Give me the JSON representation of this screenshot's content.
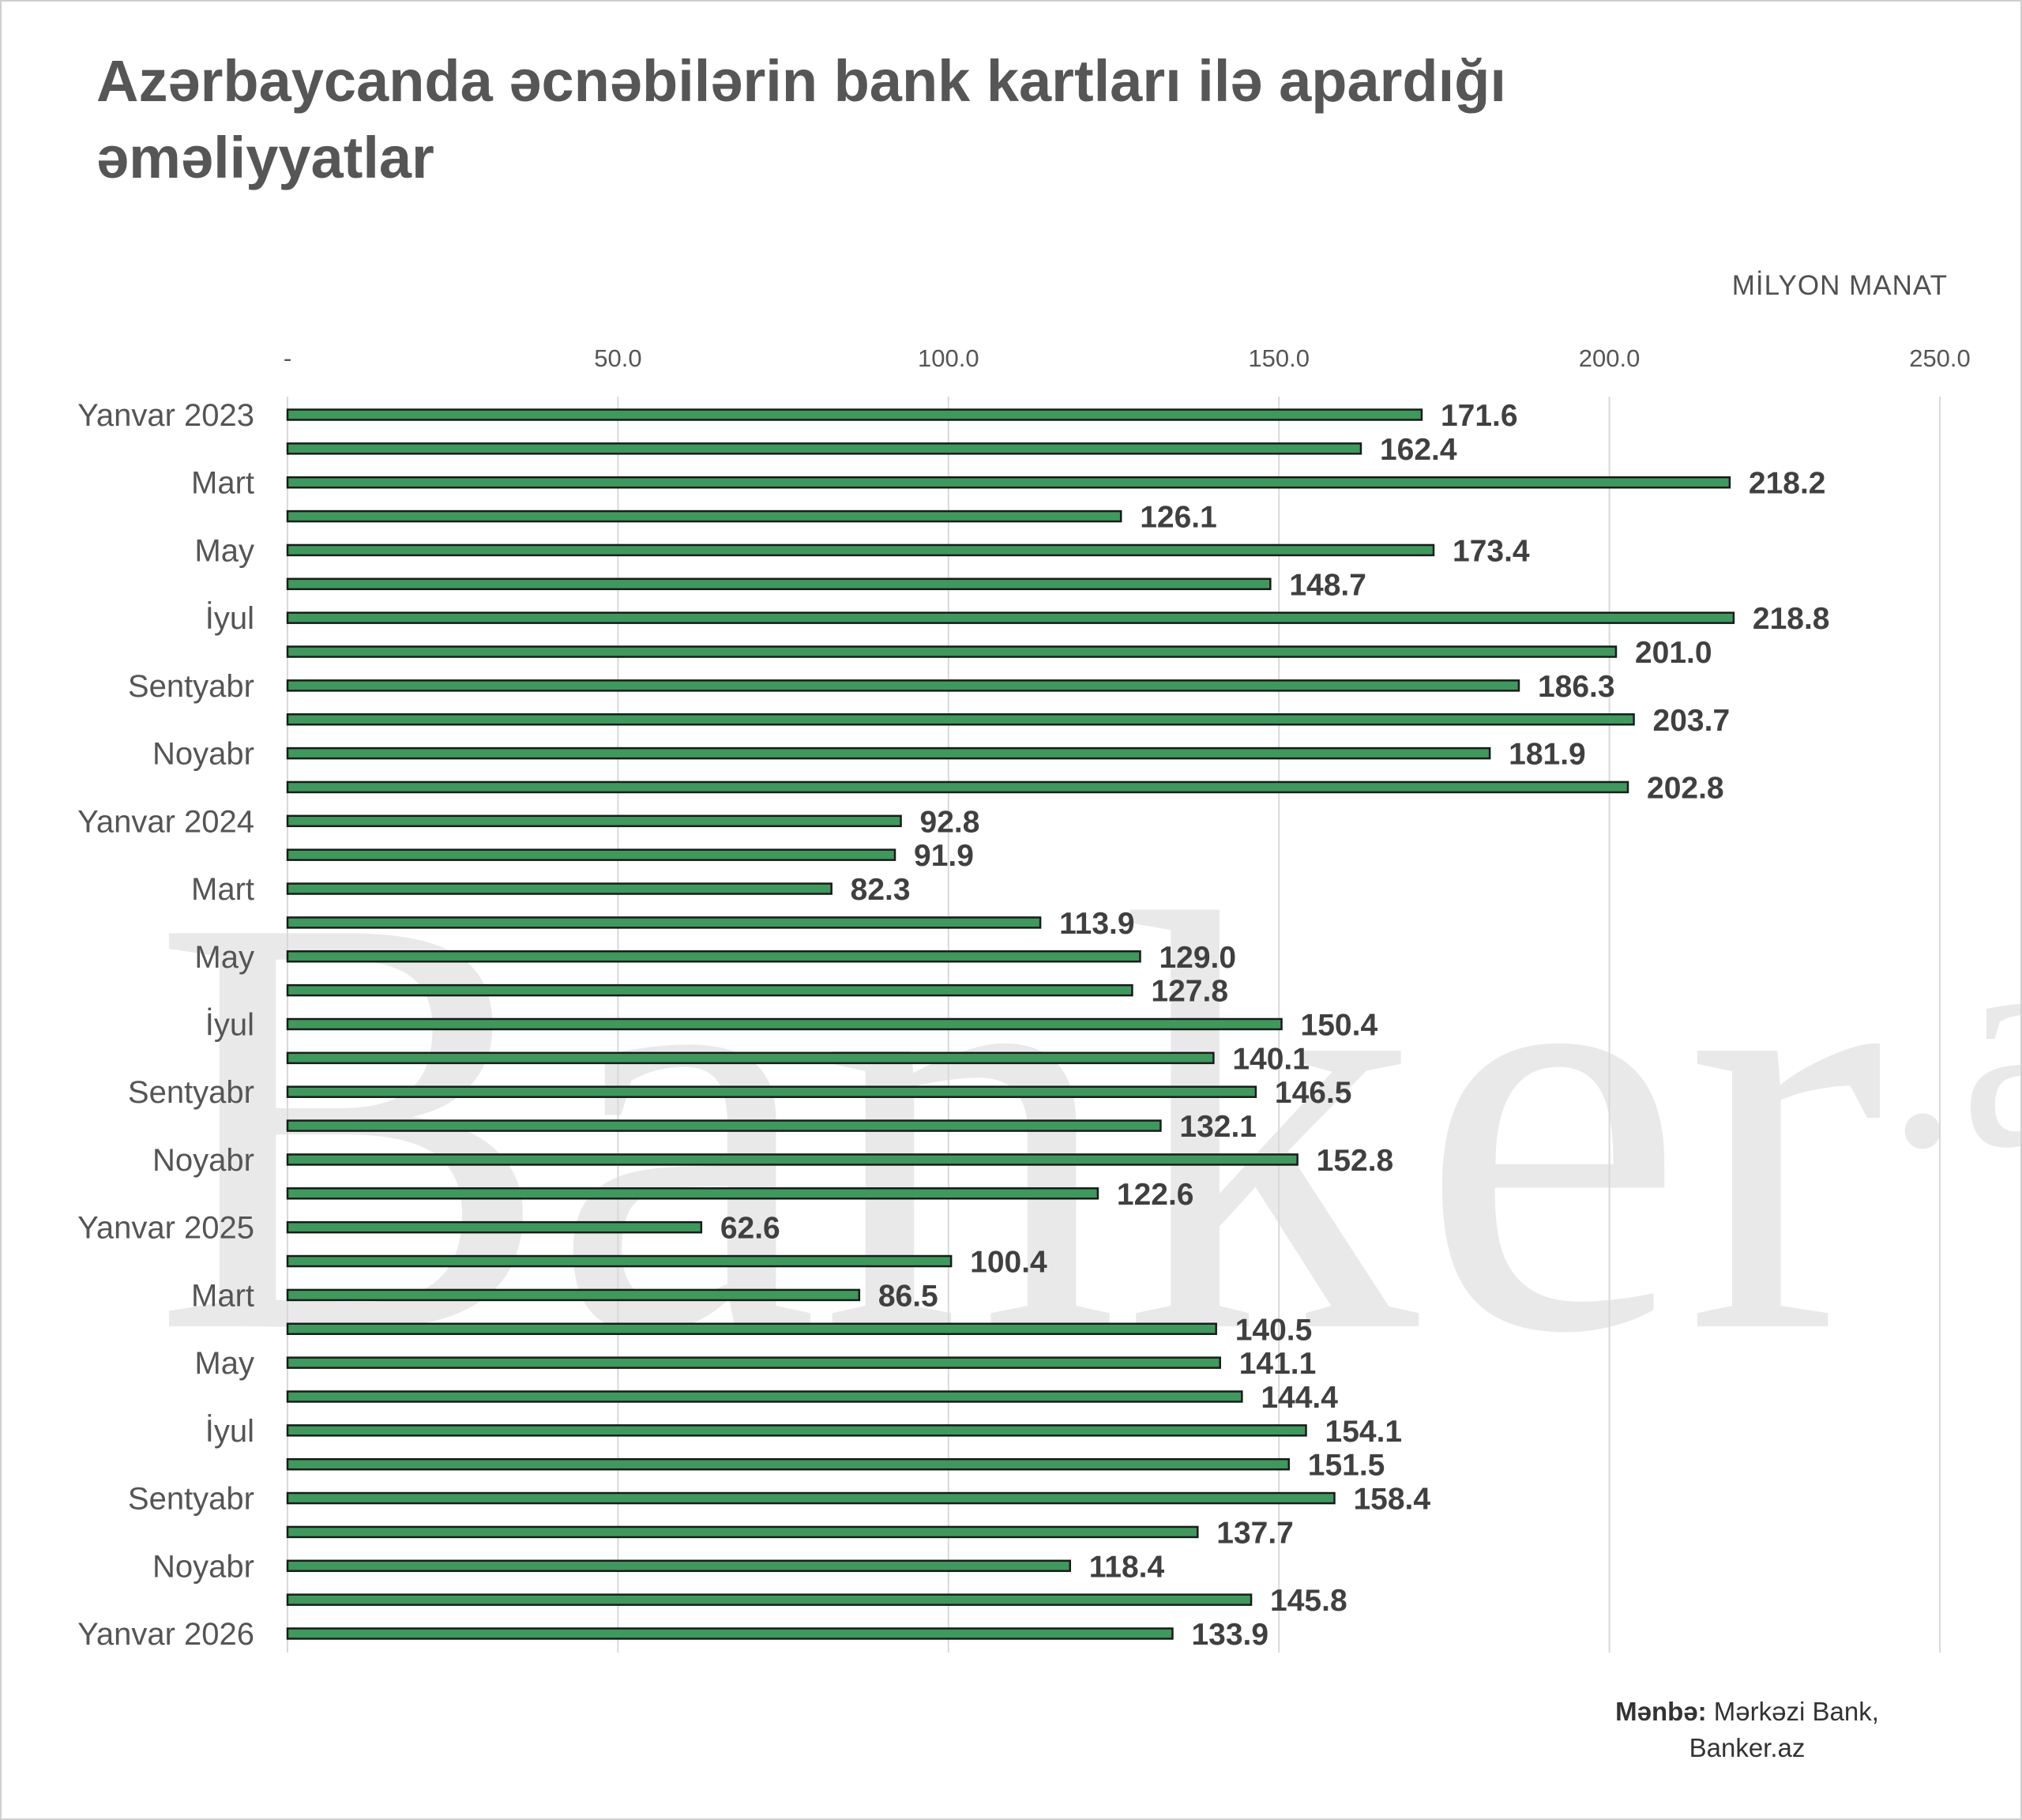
{
  "title": "Azərbaycanda əcnəbilərin bank kartları ilə apardığı əməliyyatlar",
  "unit_label": "MİLYON MANAT",
  "watermark": {
    "main": "Banker",
    "sup": ".az"
  },
  "source": {
    "label": "Mənbə:",
    "text": "Mərkəzi Bank, Banker.az"
  },
  "colors": {
    "bar": "#3d9a5c",
    "bar_outline": "#1b1b1b",
    "gridline": "#d9d9d9",
    "value_label": "#404040"
  },
  "chart_data": {
    "type": "bar",
    "orientation": "horizontal",
    "xlim": [
      0,
      250
    ],
    "x_ticks": [
      "-",
      "50.0",
      "100.0",
      "150.0",
      "200.0",
      "250.0"
    ],
    "grid": true,
    "categories": [
      "Yanvar 2023",
      "",
      "Mart",
      "",
      "May",
      "",
      "İyul",
      "",
      "Sentyabr",
      "",
      "Noyabr",
      "",
      "Yanvar 2024",
      "",
      "Mart",
      "",
      "May",
      "",
      "İyul",
      "",
      "Sentyabr",
      "",
      "Noyabr",
      "",
      "Yanvar 2025",
      "",
      "Mart",
      "",
      "May",
      "",
      "İyul",
      "",
      "Sentyabr",
      "",
      "Noyabr",
      "",
      "Yanvar 2026"
    ],
    "values": [
      171.6,
      162.4,
      218.2,
      126.1,
      173.4,
      148.7,
      218.8,
      201.0,
      186.3,
      203.7,
      181.9,
      202.8,
      92.8,
      91.9,
      82.3,
      113.9,
      129.0,
      127.8,
      150.4,
      140.1,
      146.5,
      132.1,
      152.8,
      122.6,
      62.6,
      100.4,
      86.5,
      140.5,
      141.1,
      144.4,
      154.1,
      151.5,
      158.4,
      137.7,
      118.4,
      145.8,
      133.9
    ],
    "value_labels": [
      "171.6",
      "162.4",
      "218.2",
      "126.1",
      "173.4",
      "148.7",
      "218.8",
      "201.0",
      "186.3",
      "203.7",
      "181.9",
      "202.8",
      "92.8",
      "91.9",
      "82.3",
      "113.9",
      "129.0",
      "127.8",
      "150.4",
      "140.1",
      "146.5",
      "132.1",
      "152.8",
      "122.6",
      "62.6",
      "100.4",
      "86.5",
      "140.5",
      "141.1",
      "144.4",
      "154.1",
      "151.5",
      "158.4",
      "137.7",
      "118.4",
      "145.8",
      "133.9"
    ]
  }
}
